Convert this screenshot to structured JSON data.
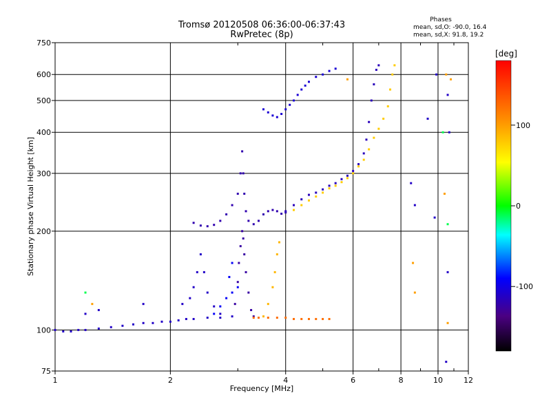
{
  "chart_data": {
    "type": "scatter",
    "title_line1": "Tromsø 20120508 06:36:00-06:37:43",
    "title_line2": "RwPretec (8p)",
    "xlabel": "Frequency [MHz]",
    "ylabel": "Stationary phase Virtual Height [km]",
    "x_scale": "log",
    "y_scale": "log",
    "xlim": [
      1,
      12
    ],
    "ylim": [
      75,
      750
    ],
    "x_ticks": [
      1,
      2,
      4,
      6,
      8,
      10,
      12
    ],
    "y_ticks": [
      75,
      100,
      200,
      300,
      400,
      500,
      600,
      750
    ],
    "grid": true,
    "phase_box": {
      "title": "Phases",
      "line1": "mean, sd,O: -90.0, 16.4",
      "line2": "mean, sd,X:  91.8, 19.2"
    },
    "colorbar": {
      "title": "[deg]",
      "min": -180,
      "max": 180,
      "ticks": [
        100,
        0,
        -100
      ],
      "colors": [
        "#000000",
        "#4b0082",
        "#0000ff",
        "#00ffff",
        "#00ff00",
        "#ffff00",
        "#ff8c00",
        "#ff0000"
      ]
    },
    "series": [
      {
        "phase": -100,
        "points": [
          [
            1.0,
            100
          ],
          [
            1.05,
            99
          ],
          [
            1.1,
            99
          ],
          [
            1.15,
            100
          ],
          [
            1.2,
            100
          ],
          [
            1.3,
            101
          ],
          [
            1.4,
            102
          ],
          [
            1.5,
            103
          ],
          [
            1.6,
            104
          ],
          [
            1.7,
            105
          ],
          [
            1.8,
            105
          ],
          [
            1.9,
            106
          ],
          [
            2.0,
            106
          ],
          [
            2.1,
            107
          ],
          [
            2.2,
            108
          ],
          [
            2.3,
            108
          ],
          [
            2.5,
            109
          ],
          [
            2.7,
            109
          ],
          [
            2.9,
            110
          ]
        ]
      },
      {
        "phase": -100,
        "points": [
          [
            2.15,
            120
          ],
          [
            2.25,
            125
          ],
          [
            2.3,
            135
          ],
          [
            2.35,
            150
          ],
          [
            2.4,
            170
          ],
          [
            2.45,
            150
          ],
          [
            2.5,
            130
          ],
          [
            2.6,
            118
          ],
          [
            2.7,
            112
          ]
        ]
      },
      {
        "phase": -110,
        "points": [
          [
            2.3,
            212
          ],
          [
            2.4,
            208
          ],
          [
            2.5,
            207
          ],
          [
            2.6,
            209
          ],
          [
            2.7,
            215
          ],
          [
            2.8,
            225
          ],
          [
            2.9,
            240
          ],
          [
            3.0,
            260
          ],
          [
            3.05,
            300
          ],
          [
            3.08,
            350
          ],
          [
            3.1,
            300
          ],
          [
            3.12,
            260
          ],
          [
            3.15,
            230
          ],
          [
            3.2,
            215
          ],
          [
            3.3,
            210
          ],
          [
            3.4,
            215
          ],
          [
            3.5,
            225
          ],
          [
            3.6,
            230
          ],
          [
            3.7,
            232
          ],
          [
            3.8,
            230
          ],
          [
            3.9,
            226
          ],
          [
            4.0,
            228
          ]
        ]
      },
      {
        "phase": -115,
        "points": [
          [
            2.95,
            120
          ],
          [
            3.0,
            140
          ],
          [
            3.02,
            160
          ],
          [
            3.05,
            180
          ],
          [
            3.08,
            200
          ],
          [
            3.1,
            190
          ],
          [
            3.12,
            170
          ],
          [
            3.15,
            150
          ],
          [
            3.2,
            130
          ],
          [
            3.25,
            115
          ],
          [
            3.3,
            110
          ]
        ]
      },
      {
        "phase": -105,
        "points": [
          [
            4.0,
            230
          ],
          [
            4.2,
            240
          ],
          [
            4.4,
            250
          ],
          [
            4.6,
            258
          ],
          [
            4.8,
            262
          ],
          [
            5.0,
            268
          ],
          [
            5.2,
            275
          ],
          [
            5.4,
            280
          ],
          [
            5.6,
            288
          ],
          [
            5.8,
            295
          ],
          [
            6.0,
            305
          ],
          [
            6.2,
            320
          ],
          [
            6.4,
            345
          ],
          [
            6.5,
            380
          ],
          [
            6.6,
            430
          ],
          [
            6.7,
            500
          ],
          [
            6.8,
            560
          ],
          [
            6.9,
            620
          ],
          [
            7.0,
            640
          ]
        ]
      },
      {
        "phase": -95,
        "points": [
          [
            3.5,
            470
          ],
          [
            3.6,
            460
          ],
          [
            3.7,
            450
          ],
          [
            3.8,
            445
          ],
          [
            3.9,
            455
          ],
          [
            4.0,
            470
          ],
          [
            4.1,
            485
          ],
          [
            4.2,
            500
          ],
          [
            4.3,
            520
          ],
          [
            4.4,
            540
          ],
          [
            4.5,
            555
          ],
          [
            4.6,
            570
          ],
          [
            4.8,
            590
          ],
          [
            5.0,
            600
          ],
          [
            5.2,
            615
          ],
          [
            5.4,
            625
          ]
        ]
      },
      {
        "phase": 100,
        "points": [
          [
            4.2,
            232
          ],
          [
            4.4,
            240
          ],
          [
            4.6,
            248
          ],
          [
            4.8,
            255
          ],
          [
            5.0,
            262
          ],
          [
            5.2,
            270
          ],
          [
            5.4,
            275
          ],
          [
            5.6,
            282
          ],
          [
            5.8,
            290
          ],
          [
            6.0,
            300
          ],
          [
            6.2,
            315
          ],
          [
            6.4,
            330
          ],
          [
            6.6,
            355
          ],
          [
            6.8,
            385
          ],
          [
            7.0,
            410
          ],
          [
            7.2,
            440
          ],
          [
            7.4,
            480
          ],
          [
            7.5,
            540
          ],
          [
            7.6,
            600
          ],
          [
            7.7,
            640
          ]
        ]
      },
      {
        "phase": 110,
        "points": [
          [
            3.5,
            110
          ],
          [
            3.6,
            120
          ],
          [
            3.7,
            135
          ],
          [
            3.75,
            150
          ],
          [
            3.8,
            170
          ],
          [
            3.85,
            185
          ]
        ]
      },
      {
        "phase": 140,
        "points": [
          [
            3.3,
            109
          ],
          [
            3.4,
            109
          ],
          [
            3.6,
            109
          ],
          [
            3.8,
            109
          ],
          [
            4.0,
            109
          ],
          [
            4.2,
            108
          ],
          [
            4.4,
            108
          ],
          [
            4.6,
            108
          ],
          [
            4.8,
            108
          ],
          [
            5.0,
            108
          ],
          [
            5.2,
            108
          ]
        ]
      },
      {
        "phase": -80,
        "points": [
          [
            2.6,
            112
          ],
          [
            2.7,
            118
          ],
          [
            2.8,
            125
          ],
          [
            2.9,
            130
          ],
          [
            3.0,
            135
          ],
          [
            2.85,
            145
          ],
          [
            2.9,
            160
          ]
        ]
      },
      {
        "phase": -100,
        "points": [
          [
            1.2,
            112
          ],
          [
            1.3,
            115
          ],
          [
            1.7,
            120
          ],
          [
            9.9,
            600
          ],
          [
            10.6,
            520
          ],
          [
            10.7,
            400
          ],
          [
            10.6,
            150
          ],
          [
            10.5,
            80
          ],
          [
            8.5,
            280
          ],
          [
            8.7,
            240
          ],
          [
            9.8,
            220
          ],
          [
            9.4,
            440
          ]
        ]
      },
      {
        "phase": 120,
        "points": [
          [
            1.25,
            120
          ],
          [
            10.8,
            580
          ],
          [
            10.5,
            600
          ],
          [
            10.4,
            260
          ],
          [
            10.6,
            105
          ],
          [
            8.7,
            130
          ],
          [
            8.6,
            160
          ],
          [
            5.8,
            580
          ]
        ]
      },
      {
        "phase": 10,
        "points": [
          [
            1.2,
            130
          ],
          [
            10.3,
            400
          ],
          [
            10.6,
            210
          ]
        ]
      }
    ]
  }
}
